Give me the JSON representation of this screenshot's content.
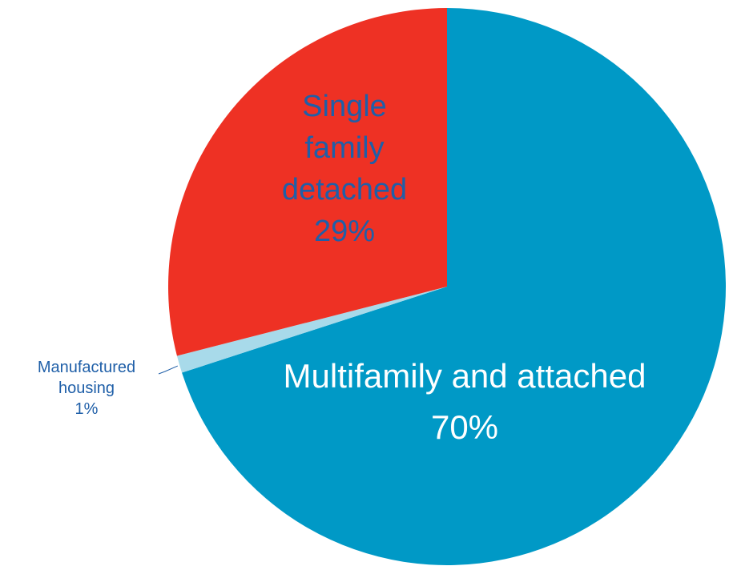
{
  "chart_data": {
    "type": "pie",
    "title": "",
    "slices": [
      {
        "lines": [
          "Multifamily and attached",
          "70%"
        ],
        "value": 70,
        "color": "#0099c6",
        "label_color": "#ffffff"
      },
      {
        "lines": [
          "Manufactured",
          "housing",
          "1%"
        ],
        "value": 1,
        "color": "#a8daea",
        "label_color": "#1f5fa8"
      },
      {
        "lines": [
          "Single",
          "family",
          "detached",
          "29%"
        ],
        "value": 29,
        "color": "#ee3124",
        "label_color": "#1f5fa8"
      }
    ]
  }
}
